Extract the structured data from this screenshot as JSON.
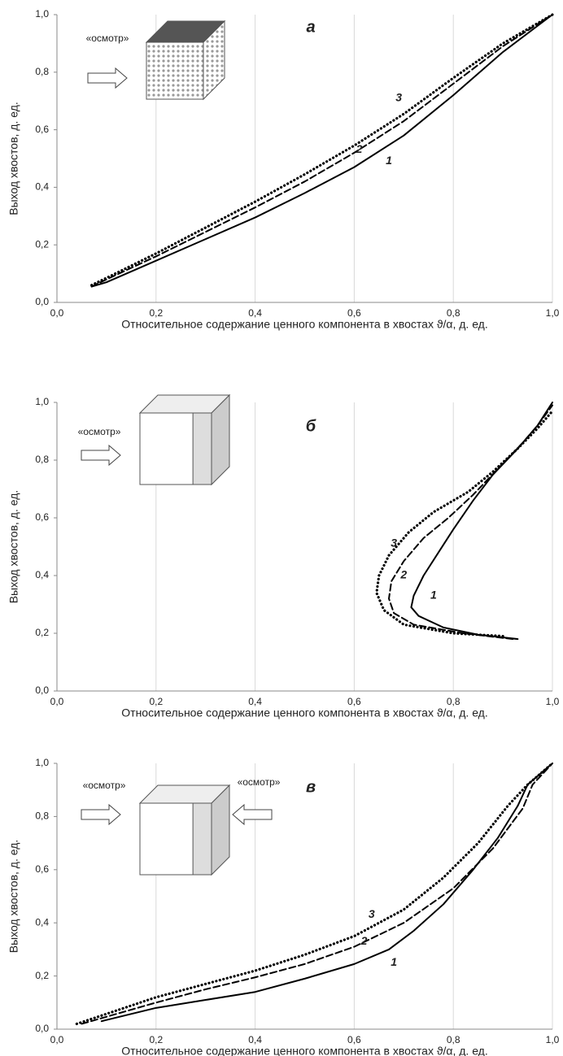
{
  "chart_data": [
    {
      "type": "line",
      "title": "а",
      "annotations": [
        "«осмотр»"
      ],
      "xlabel": "Относительное содержание ценного компонента в хвостах ϑ/α, д. ед.",
      "ylabel": "Выход хвостов, д. ед.",
      "xlim": [
        0,
        1
      ],
      "ylim": [
        0,
        1
      ],
      "xticks": [
        {
          "value": 0,
          "label": "0,0"
        },
        {
          "value": 0.2,
          "label": "0,2"
        },
        {
          "value": 0.4,
          "label": "0,4"
        },
        {
          "value": 0.6,
          "label": "0,6"
        },
        {
          "value": 0.8,
          "label": "0,8"
        },
        {
          "value": 1,
          "label": "1,0"
        }
      ],
      "yticks": [
        {
          "value": 0,
          "label": "0,0"
        },
        {
          "value": 0.2,
          "label": "0,2"
        },
        {
          "value": 0.4,
          "label": "0,4"
        },
        {
          "value": 0.6,
          "label": "0,6"
        },
        {
          "value": 0.8,
          "label": "0,8"
        },
        {
          "value": 1,
          "label": "1,0"
        }
      ],
      "grid": "x",
      "series": [
        {
          "name": "1",
          "color": "#000000",
          "style": "solid",
          "x": [
            0.07,
            0.1,
            0.2,
            0.3,
            0.4,
            0.5,
            0.6,
            0.7,
            0.8,
            0.9,
            1.0
          ],
          "values": [
            0.055,
            0.07,
            0.145,
            0.22,
            0.295,
            0.38,
            0.47,
            0.58,
            0.72,
            0.87,
            1.0
          ]
        },
        {
          "name": "2",
          "color": "#000000",
          "style": "dashed",
          "x": [
            0.07,
            0.1,
            0.2,
            0.3,
            0.4,
            0.5,
            0.6,
            0.7,
            0.8,
            0.9,
            1.0
          ],
          "values": [
            0.055,
            0.08,
            0.16,
            0.245,
            0.33,
            0.42,
            0.52,
            0.63,
            0.76,
            0.89,
            1.0
          ]
        },
        {
          "name": "3",
          "color": "#000000",
          "style": "dotted",
          "x": [
            0.07,
            0.1,
            0.2,
            0.3,
            0.4,
            0.5,
            0.6,
            0.7,
            0.8,
            0.9,
            1.0
          ],
          "values": [
            0.06,
            0.085,
            0.17,
            0.26,
            0.35,
            0.445,
            0.545,
            0.655,
            0.78,
            0.9,
            1.0
          ]
        }
      ]
    },
    {
      "type": "line",
      "title": "б",
      "annotations": [
        "«осмотр»"
      ],
      "xlabel": "Относительное содержание ценного компонента в хвостах ϑ/α, д. ед.",
      "ylabel": "Выход хвостов, д. ед.",
      "xlim": [
        0,
        1
      ],
      "ylim": [
        0,
        1
      ],
      "xticks": [
        {
          "value": 0,
          "label": "0,0"
        },
        {
          "value": 0.2,
          "label": "0,2"
        },
        {
          "value": 0.4,
          "label": "0,4"
        },
        {
          "value": 0.6,
          "label": "0,6"
        },
        {
          "value": 0.8,
          "label": "0,8"
        },
        {
          "value": 1,
          "label": "1,0"
        }
      ],
      "yticks": [
        {
          "value": 0,
          "label": "0,0"
        },
        {
          "value": 0.2,
          "label": "0,2"
        },
        {
          "value": 0.4,
          "label": "0,4"
        },
        {
          "value": 0.6,
          "label": "0,6"
        },
        {
          "value": 0.8,
          "label": "0,8"
        },
        {
          "value": 1,
          "label": "1,0"
        }
      ],
      "grid": "x",
      "series": [
        {
          "name": "1",
          "color": "#000000",
          "style": "solid",
          "x": [
            0.93,
            0.85,
            0.78,
            0.73,
            0.715,
            0.72,
            0.74,
            0.77,
            0.8,
            0.84,
            0.88,
            0.93,
            0.97,
            1.0
          ],
          "values": [
            0.18,
            0.195,
            0.22,
            0.26,
            0.29,
            0.33,
            0.4,
            0.48,
            0.56,
            0.66,
            0.75,
            0.84,
            0.92,
            1.0
          ]
        },
        {
          "name": "2",
          "color": "#000000",
          "style": "dashed",
          "x": [
            0.92,
            0.82,
            0.72,
            0.68,
            0.67,
            0.675,
            0.7,
            0.74,
            0.79,
            0.84,
            0.89,
            0.94,
            0.97,
            1.0
          ],
          "values": [
            0.18,
            0.2,
            0.23,
            0.27,
            0.32,
            0.38,
            0.45,
            0.53,
            0.6,
            0.68,
            0.77,
            0.86,
            0.92,
            0.99
          ]
        },
        {
          "name": "3",
          "color": "#000000",
          "style": "dotted",
          "x": [
            0.9,
            0.8,
            0.7,
            0.66,
            0.645,
            0.65,
            0.67,
            0.71,
            0.76,
            0.83,
            0.88,
            0.93,
            0.97,
            1.0
          ],
          "values": [
            0.19,
            0.2,
            0.23,
            0.28,
            0.34,
            0.4,
            0.47,
            0.55,
            0.62,
            0.69,
            0.76,
            0.84,
            0.91,
            0.97
          ]
        }
      ]
    },
    {
      "type": "line",
      "title": "в",
      "annotations": [
        "«осмотр»",
        "«осмотр»"
      ],
      "xlabel": "Относительное содержание ценного компонента в хвостах ϑ/α, д. ед.",
      "ylabel": "Выход хвостов, д. ед.",
      "xlim": [
        0,
        1
      ],
      "ylim": [
        0,
        1
      ],
      "xticks": [
        {
          "value": 0,
          "label": "0,0"
        },
        {
          "value": 0.2,
          "label": "0,2"
        },
        {
          "value": 0.4,
          "label": "0,4"
        },
        {
          "value": 0.6,
          "label": "0,6"
        },
        {
          "value": 0.8,
          "label": "0,8"
        },
        {
          "value": 1,
          "label": "1,0"
        }
      ],
      "yticks": [
        {
          "value": 0,
          "label": "0,0"
        },
        {
          "value": 0.2,
          "label": "0,2"
        },
        {
          "value": 0.4,
          "label": "0,4"
        },
        {
          "value": 0.6,
          "label": "0,6"
        },
        {
          "value": 0.8,
          "label": "0,8"
        },
        {
          "value": 1,
          "label": "1,0"
        }
      ],
      "grid": "x",
      "series": [
        {
          "name": "1",
          "color": "#000000",
          "style": "solid",
          "x": [
            0.09,
            0.2,
            0.3,
            0.4,
            0.5,
            0.6,
            0.67,
            0.72,
            0.78,
            0.84,
            0.89,
            0.93,
            0.95,
            1.0
          ],
          "values": [
            0.03,
            0.08,
            0.11,
            0.14,
            0.19,
            0.245,
            0.3,
            0.37,
            0.47,
            0.6,
            0.72,
            0.84,
            0.92,
            1.0
          ]
        },
        {
          "name": "2",
          "color": "#000000",
          "style": "dashed",
          "x": [
            0.05,
            0.2,
            0.3,
            0.4,
            0.5,
            0.6,
            0.7,
            0.8,
            0.88,
            0.94,
            0.96,
            1.0
          ],
          "values": [
            0.02,
            0.1,
            0.15,
            0.195,
            0.245,
            0.31,
            0.4,
            0.53,
            0.68,
            0.83,
            0.92,
            1.0
          ]
        },
        {
          "name": "3",
          "color": "#000000",
          "style": "dotted",
          "x": [
            0.04,
            0.2,
            0.3,
            0.4,
            0.5,
            0.6,
            0.7,
            0.78,
            0.85,
            0.91,
            0.95,
            1.0
          ],
          "values": [
            0.02,
            0.12,
            0.17,
            0.22,
            0.28,
            0.35,
            0.45,
            0.57,
            0.7,
            0.84,
            0.92,
            1.0
          ]
        }
      ]
    }
  ]
}
